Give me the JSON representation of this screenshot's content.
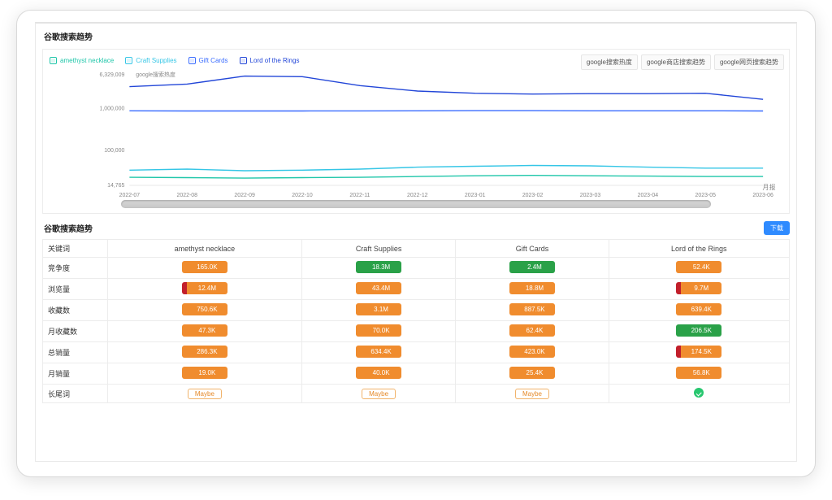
{
  "sections": {
    "chart_title": "谷歌搜索趋势",
    "table_title": "谷歌搜索趋势"
  },
  "chart": {
    "type": "line",
    "yaxis_title": "google搜索热度",
    "xaxis_unit_label": "月报",
    "yscale": "log",
    "ylim": [
      14765,
      6329009
    ],
    "y_ticks": [
      {
        "v": 6329009,
        "label": "6,329,009"
      },
      {
        "v": 1000000,
        "label": "1,000,000"
      },
      {
        "v": 100000,
        "label": "100,000"
      },
      {
        "v": 14765,
        "label": "14,765"
      }
    ],
    "x_categories": [
      "2022-07",
      "2022-08",
      "2022-09",
      "2022-10",
      "2022-11",
      "2022-12",
      "2023-01",
      "2023-02",
      "2023-03",
      "2023-04",
      "2023-05",
      "2023-06"
    ],
    "background_color": "#ffffff",
    "legend": [
      {
        "key": "amethyst",
        "label": "amethyst necklace",
        "color": "#1ec6a9"
      },
      {
        "key": "craft",
        "label": "Craft Supplies",
        "color": "#35c6e6"
      },
      {
        "key": "gift",
        "label": "Gift Cards",
        "color": "#3a6cff"
      },
      {
        "key": "lotr",
        "label": "Lord of the Rings",
        "color": "#2246d8"
      }
    ],
    "series": {
      "amethyst": [
        23000,
        22500,
        22000,
        22500,
        23000,
        24000,
        25000,
        25500,
        25000,
        24500,
        24000,
        24000
      ],
      "craft": [
        34000,
        36000,
        33000,
        34000,
        36000,
        40000,
        42000,
        44000,
        43000,
        40000,
        38000,
        38000
      ],
      "gift": [
        880000,
        870000,
        870000,
        870000,
        875000,
        880000,
        885000,
        885000,
        880000,
        880000,
        880000,
        870000
      ],
      "lotr": [
        3300000,
        3800000,
        5900000,
        5700000,
        3500000,
        2600000,
        2300000,
        2200000,
        2250000,
        2250000,
        2300000,
        1650000
      ]
    },
    "line_width": 1.4,
    "tabs": [
      "google搜索热度",
      "google商店搜索趋势",
      "google网页搜索趋势"
    ]
  },
  "table": {
    "download_label": "下载",
    "header_first": "关键词",
    "columns": [
      "amethyst necklace",
      "Craft Supplies",
      "Gift Cards",
      "Lord of the Rings"
    ],
    "rows": [
      {
        "label": "竞争度",
        "cells": [
          {
            "kind": "pill",
            "text": "165.0K",
            "fill": "#f08c2e",
            "bar": "#f08c2e"
          },
          {
            "kind": "pill",
            "text": "18.3M",
            "fill": "#2aa148",
            "bar": "#2aa148"
          },
          {
            "kind": "pill",
            "text": "2.4M",
            "fill": "#2aa148",
            "bar": "#2aa148"
          },
          {
            "kind": "pill",
            "text": "52.4K",
            "fill": "#f08c2e",
            "bar": "#f08c2e"
          }
        ]
      },
      {
        "label": "浏览量",
        "cells": [
          {
            "kind": "pill",
            "text": "12.4M",
            "fill": "#f08c2e",
            "bar": "#c21f2b"
          },
          {
            "kind": "pill",
            "text": "43.4M",
            "fill": "#f08c2e",
            "bar": "#f08c2e"
          },
          {
            "kind": "pill",
            "text": "18.8M",
            "fill": "#f08c2e",
            "bar": "#f08c2e"
          },
          {
            "kind": "pill",
            "text": "9.7M",
            "fill": "#f08c2e",
            "bar": "#c21f2b"
          }
        ]
      },
      {
        "label": "收藏数",
        "cells": [
          {
            "kind": "pill",
            "text": "750.6K",
            "fill": "#f08c2e",
            "bar": "#f08c2e"
          },
          {
            "kind": "pill",
            "text": "3.1M",
            "fill": "#f08c2e",
            "bar": "#f08c2e"
          },
          {
            "kind": "pill",
            "text": "887.5K",
            "fill": "#f08c2e",
            "bar": "#f08c2e"
          },
          {
            "kind": "pill",
            "text": "639.4K",
            "fill": "#f08c2e",
            "bar": "#f08c2e"
          }
        ]
      },
      {
        "label": "月收藏数",
        "cells": [
          {
            "kind": "pill",
            "text": "47.3K",
            "fill": "#f08c2e",
            "bar": "#f08c2e"
          },
          {
            "kind": "pill",
            "text": "70.0K",
            "fill": "#f08c2e",
            "bar": "#f08c2e"
          },
          {
            "kind": "pill",
            "text": "62.4K",
            "fill": "#f08c2e",
            "bar": "#f08c2e"
          },
          {
            "kind": "pill",
            "text": "206.5K",
            "fill": "#2aa148",
            "bar": "#2aa148"
          }
        ]
      },
      {
        "label": "总销量",
        "cells": [
          {
            "kind": "pill",
            "text": "286.3K",
            "fill": "#f08c2e",
            "bar": "#f08c2e"
          },
          {
            "kind": "pill",
            "text": "634.4K",
            "fill": "#f08c2e",
            "bar": "#f08c2e"
          },
          {
            "kind": "pill",
            "text": "423.0K",
            "fill": "#f08c2e",
            "bar": "#f08c2e"
          },
          {
            "kind": "pill",
            "text": "174.5K",
            "fill": "#f08c2e",
            "bar": "#c21f2b"
          }
        ]
      },
      {
        "label": "月销量",
        "cells": [
          {
            "kind": "pill",
            "text": "19.0K",
            "fill": "#f08c2e",
            "bar": "#f08c2e"
          },
          {
            "kind": "pill",
            "text": "40.0K",
            "fill": "#f08c2e",
            "bar": "#f08c2e"
          },
          {
            "kind": "pill",
            "text": "25.4K",
            "fill": "#f08c2e",
            "bar": "#f08c2e"
          },
          {
            "kind": "pill",
            "text": "56.8K",
            "fill": "#f08c2e",
            "bar": "#f08c2e"
          }
        ]
      },
      {
        "label": "长尾词",
        "cells": [
          {
            "kind": "maybe",
            "text": "Maybe"
          },
          {
            "kind": "maybe",
            "text": "Maybe"
          },
          {
            "kind": "maybe",
            "text": "Maybe"
          },
          {
            "kind": "good"
          }
        ]
      }
    ]
  }
}
